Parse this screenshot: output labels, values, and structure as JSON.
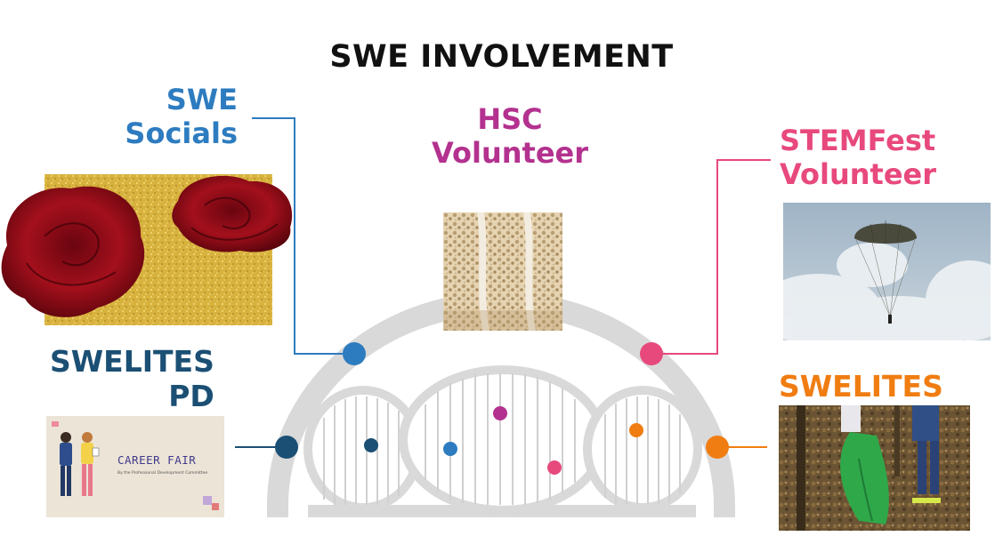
{
  "title": "SWE INVOLVEMENT",
  "labels": {
    "socials": {
      "line1": "SWE",
      "line2": "Socials"
    },
    "hsc": {
      "line1": "HSC",
      "line2": "Volunteer"
    },
    "stemfest": {
      "line1": "STEMFest",
      "line2": "Volunteer"
    },
    "swelites_pd": {
      "line1": "SWELITES",
      "line2": "PD"
    },
    "swelites": {
      "line1": "SWELITES"
    }
  },
  "career_card": {
    "heading": "CAREER FAIR",
    "subtitle": "By the Professional Development Committee"
  },
  "colors": {
    "socials": "#2e7cc0",
    "hsc": "#b3318f",
    "stemfest": "#e8497d",
    "swelites_pd": "#1b4f74",
    "swelites": "#f07d12",
    "arch": "#d9d9d9"
  },
  "icons": [
    "roses-photo",
    "bone-tissue-photo",
    "parachute-photo",
    "career-fair-card",
    "cleanup-photo"
  ]
}
